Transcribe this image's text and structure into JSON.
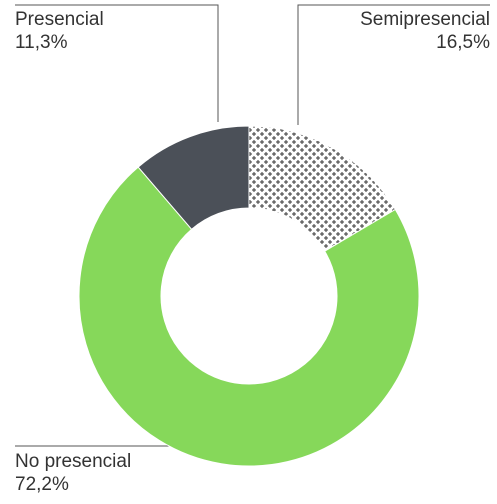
{
  "chart_data": {
    "type": "donut",
    "categories": [
      "Semipresencial",
      "No presencial",
      "Presencial"
    ],
    "values": [
      16.5,
      72.2,
      11.3
    ],
    "value_labels": [
      "16,5%",
      "72,2%",
      "11,3%"
    ],
    "colors": [
      "#3a3a3a",
      "#86d85a",
      "#4b5058"
    ],
    "patterned": [
      true,
      false,
      false
    ]
  }
}
